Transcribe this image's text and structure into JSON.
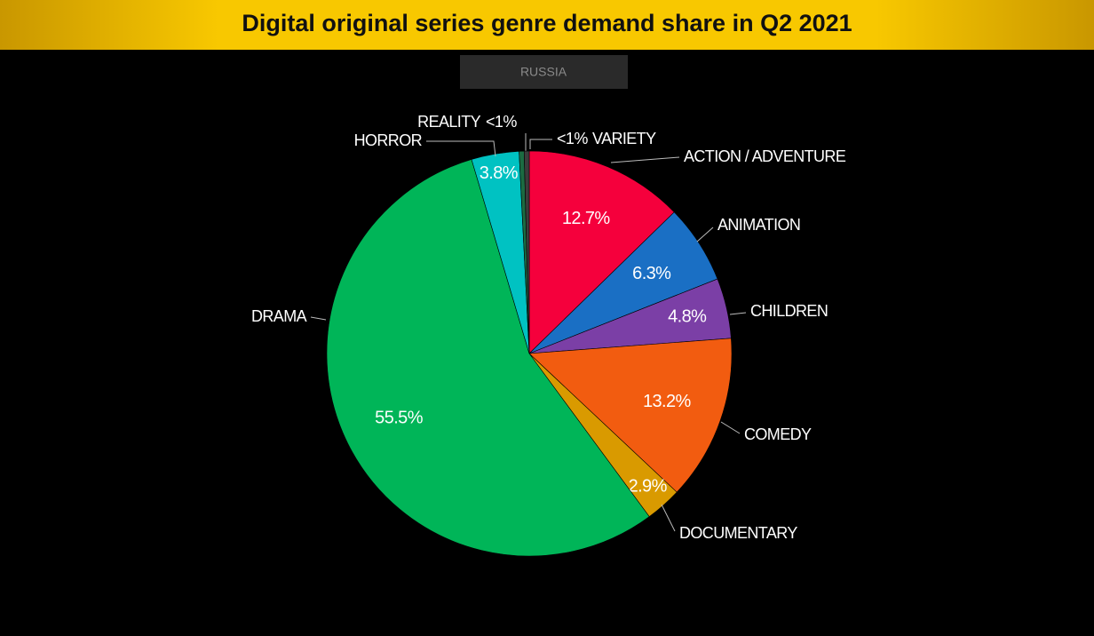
{
  "chart_data": {
    "type": "pie",
    "title_parts": [
      "Digital original series",
      "genre",
      "demand share in Q2 2021"
    ],
    "subtitle": "RUSSIA",
    "categories": [
      "ACTION / ADVENTURE",
      "ANIMATION",
      "CHILDREN",
      "COMEDY",
      "DOCUMENTARY",
      "DRAMA",
      "HORROR",
      "REALITY",
      "VARIETY"
    ],
    "values": [
      12.7,
      6.3,
      4.8,
      13.2,
      2.9,
      55.5,
      3.8,
      0.4,
      0.4
    ],
    "value_labels": [
      "12.7%",
      "6.3%",
      "4.8%",
      "13.2%",
      "2.9%",
      "55.5%",
      "3.8%",
      "<1%",
      "<1%"
    ],
    "colors": [
      "#f5003c",
      "#1a6fc4",
      "#7b3fa6",
      "#f25c10",
      "#d99a00",
      "#00b558",
      "#00c2c2",
      "#1b6b42",
      "#3c3c3c"
    ]
  }
}
